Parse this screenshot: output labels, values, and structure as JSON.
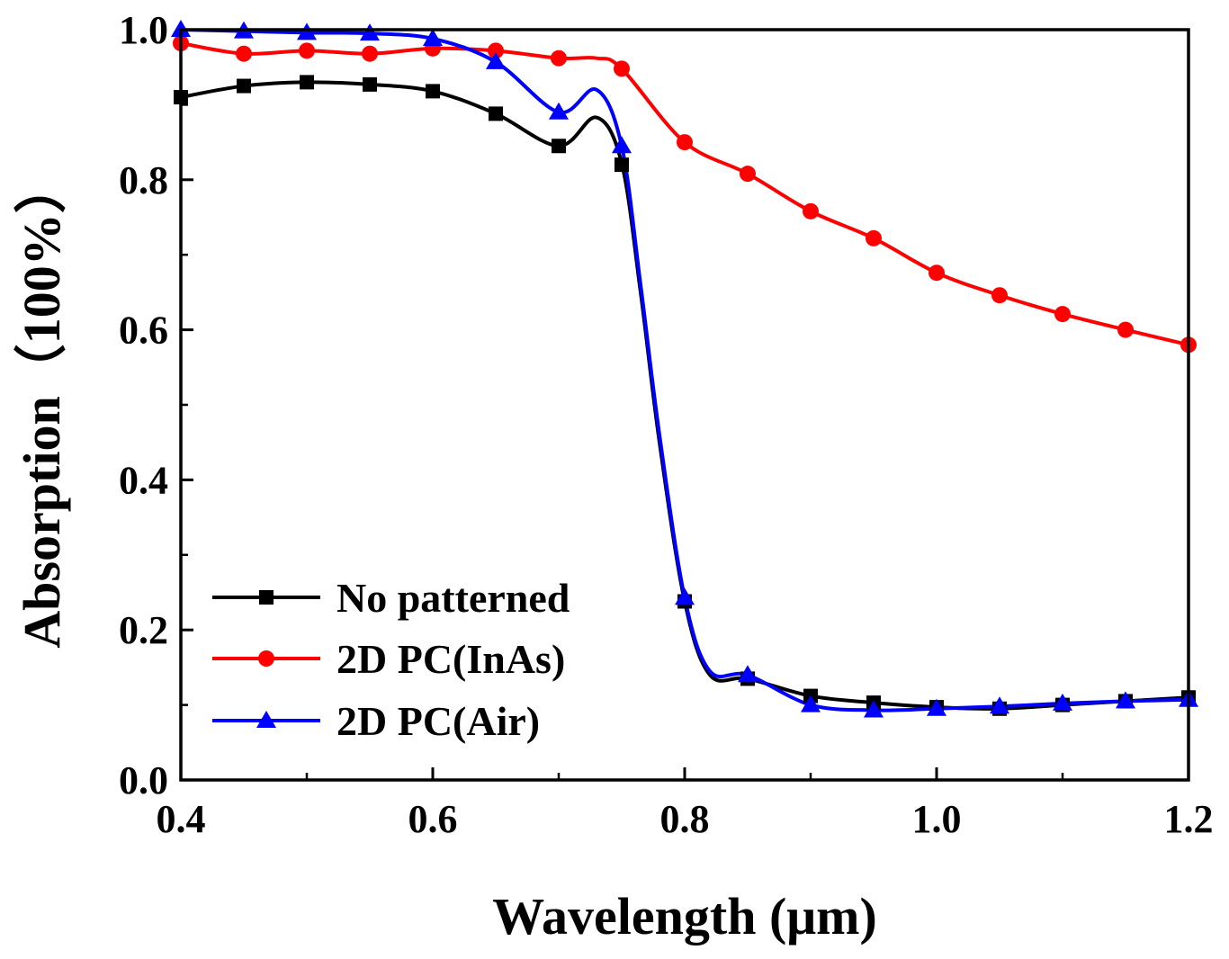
{
  "chart_data": {
    "type": "line",
    "title": "",
    "xlabel": "Wavelength (μm)",
    "ylabel": "Absorption（100%）",
    "xlim": [
      0.4,
      1.2
    ],
    "ylim": [
      0.0,
      1.0
    ],
    "xticks": [
      "0.4",
      "0.6",
      "0.8",
      "1.0",
      "1.2"
    ],
    "yticks": [
      "0.0",
      "0.2",
      "0.4",
      "0.6",
      "0.8",
      "1.0"
    ],
    "legend_position": "bottom-left",
    "series": [
      {
        "name": "No patterned",
        "color": "#000000",
        "marker": "square",
        "x": [
          0.4,
          0.45,
          0.5,
          0.55,
          0.6,
          0.65,
          0.7,
          0.75,
          0.8,
          0.85,
          0.9,
          0.95,
          1.0,
          1.05,
          1.1,
          1.15,
          1.2
        ],
        "y": [
          0.91,
          0.925,
          0.93,
          0.927,
          0.918,
          0.888,
          0.845,
          0.82,
          0.238,
          0.135,
          0.112,
          0.103,
          0.097,
          0.095,
          0.1,
          0.105,
          0.11
        ],
        "curve_x": [
          0.4,
          0.45,
          0.5,
          0.55,
          0.6,
          0.65,
          0.7,
          0.73,
          0.75,
          0.765,
          0.78,
          0.8,
          0.82,
          0.85,
          0.9,
          0.95,
          1.0,
          1.05,
          1.1,
          1.15,
          1.2
        ],
        "curve_y": [
          0.91,
          0.925,
          0.93,
          0.927,
          0.918,
          0.888,
          0.845,
          0.883,
          0.822,
          0.65,
          0.45,
          0.238,
          0.14,
          0.135,
          0.112,
          0.103,
          0.097,
          0.095,
          0.1,
          0.105,
          0.11
        ]
      },
      {
        "name": "2D PC(InAs)",
        "color": "#ff0000",
        "marker": "circle",
        "x": [
          0.4,
          0.45,
          0.5,
          0.55,
          0.6,
          0.65,
          0.7,
          0.75,
          0.8,
          0.85,
          0.9,
          0.95,
          1.0,
          1.05,
          1.1,
          1.15,
          1.2
        ],
        "y": [
          0.982,
          0.968,
          0.972,
          0.968,
          0.975,
          0.972,
          0.962,
          0.948,
          0.85,
          0.808,
          0.758,
          0.722,
          0.676,
          0.646,
          0.621,
          0.6,
          0.58
        ],
        "curve_x": [
          0.4,
          0.45,
          0.5,
          0.55,
          0.6,
          0.65,
          0.7,
          0.73,
          0.75,
          0.8,
          0.85,
          0.9,
          0.95,
          1.0,
          1.05,
          1.1,
          1.15,
          1.2
        ],
        "curve_y": [
          0.982,
          0.968,
          0.972,
          0.968,
          0.975,
          0.972,
          0.962,
          0.962,
          0.948,
          0.85,
          0.808,
          0.758,
          0.722,
          0.676,
          0.646,
          0.621,
          0.6,
          0.58
        ]
      },
      {
        "name": "2D PC(Air)",
        "color": "#0000ff",
        "marker": "triangle",
        "x": [
          0.4,
          0.45,
          0.5,
          0.55,
          0.6,
          0.65,
          0.7,
          0.75,
          0.8,
          0.85,
          0.9,
          0.95,
          1.0,
          1.05,
          1.1,
          1.15,
          1.2
        ],
        "y": [
          1.0,
          0.998,
          0.996,
          0.995,
          0.988,
          0.957,
          0.89,
          0.845,
          0.243,
          0.14,
          0.1,
          0.093,
          0.095,
          0.098,
          0.102,
          0.105,
          0.107
        ],
        "curve_x": [
          0.4,
          0.45,
          0.5,
          0.55,
          0.6,
          0.65,
          0.7,
          0.73,
          0.75,
          0.765,
          0.78,
          0.8,
          0.82,
          0.85,
          0.9,
          0.95,
          1.0,
          1.05,
          1.1,
          1.15,
          1.2
        ],
        "curve_y": [
          1.0,
          0.998,
          0.996,
          0.995,
          0.988,
          0.957,
          0.89,
          0.92,
          0.845,
          0.66,
          0.46,
          0.243,
          0.145,
          0.14,
          0.1,
          0.093,
          0.095,
          0.098,
          0.102,
          0.105,
          0.107
        ]
      }
    ]
  }
}
